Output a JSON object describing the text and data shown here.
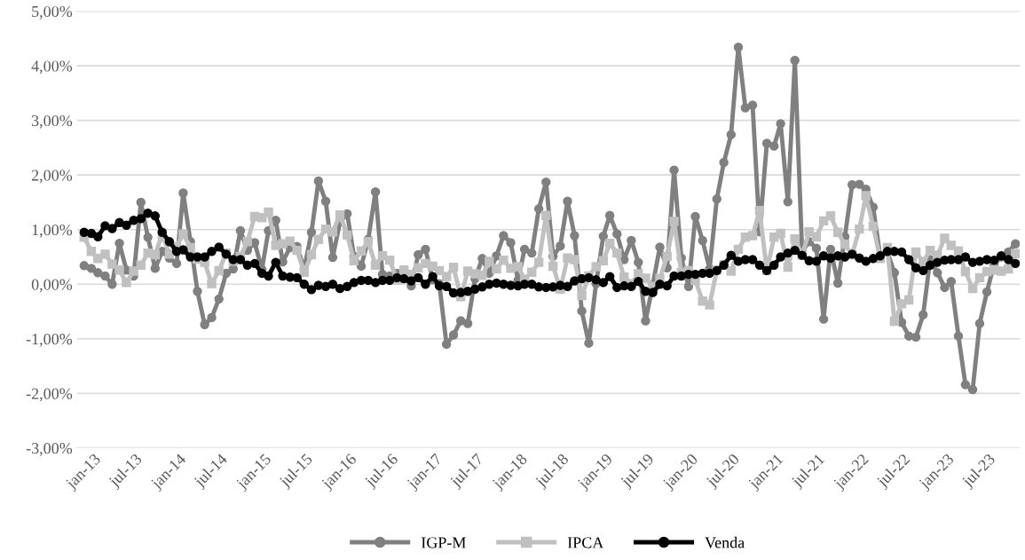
{
  "chart_data": {
    "type": "line",
    "x": [
      "2013-01",
      "2013-02",
      "2013-03",
      "2013-04",
      "2013-05",
      "2013-06",
      "2013-07",
      "2013-08",
      "2013-09",
      "2013-10",
      "2013-11",
      "2013-12",
      "2014-01",
      "2014-02",
      "2014-03",
      "2014-04",
      "2014-05",
      "2014-06",
      "2014-07",
      "2014-08",
      "2014-09",
      "2014-10",
      "2014-11",
      "2014-12",
      "2015-01",
      "2015-02",
      "2015-03",
      "2015-04",
      "2015-05",
      "2015-06",
      "2015-07",
      "2015-08",
      "2015-09",
      "2015-10",
      "2015-11",
      "2015-12",
      "2016-01",
      "2016-02",
      "2016-03",
      "2016-04",
      "2016-05",
      "2016-06",
      "2016-07",
      "2016-08",
      "2016-09",
      "2016-10",
      "2016-11",
      "2016-12",
      "2017-01",
      "2017-02",
      "2017-03",
      "2017-04",
      "2017-05",
      "2017-06",
      "2017-07",
      "2017-08",
      "2017-09",
      "2017-10",
      "2017-11",
      "2017-12",
      "2018-01",
      "2018-02",
      "2018-03",
      "2018-04",
      "2018-05",
      "2018-06",
      "2018-07",
      "2018-08",
      "2018-09",
      "2018-10",
      "2018-11",
      "2018-12",
      "2019-01",
      "2019-02",
      "2019-03",
      "2019-04",
      "2019-05",
      "2019-06",
      "2019-07",
      "2019-08",
      "2019-09",
      "2019-10",
      "2019-11",
      "2019-12",
      "2020-01",
      "2020-02",
      "2020-03",
      "2020-04",
      "2020-05",
      "2020-06",
      "2020-07",
      "2020-08",
      "2020-09",
      "2020-10",
      "2020-11",
      "2020-12",
      "2021-01",
      "2021-02",
      "2021-03",
      "2021-04",
      "2021-05",
      "2021-06",
      "2021-07",
      "2021-08",
      "2021-09",
      "2021-10",
      "2021-11",
      "2021-12",
      "2022-01",
      "2022-02",
      "2022-03",
      "2022-04",
      "2022-05",
      "2022-06",
      "2022-07",
      "2022-08",
      "2022-09",
      "2022-10",
      "2022-11",
      "2022-12",
      "2023-01",
      "2023-02",
      "2023-03",
      "2023-04",
      "2023-05",
      "2023-06",
      "2023-07",
      "2023-08",
      "2023-09",
      "2023-10",
      "2023-11",
      "2023-12"
    ],
    "xlim": [
      "2012-12-01",
      "2023-12-20"
    ],
    "xticks": [
      {
        "value": "2013-01",
        "label": "jan-13"
      },
      {
        "value": "2013-07",
        "label": "jul-13"
      },
      {
        "value": "2014-01",
        "label": "jan-14"
      },
      {
        "value": "2014-07",
        "label": "jul-14"
      },
      {
        "value": "2015-01",
        "label": "jan-15"
      },
      {
        "value": "2015-07",
        "label": "jul-15"
      },
      {
        "value": "2016-01",
        "label": "jan-16"
      },
      {
        "value": "2016-07",
        "label": "jul-16"
      },
      {
        "value": "2017-01",
        "label": "jan-17"
      },
      {
        "value": "2017-07",
        "label": "jul-17"
      },
      {
        "value": "2018-01",
        "label": "jan-18"
      },
      {
        "value": "2018-07",
        "label": "jul-18"
      },
      {
        "value": "2019-01",
        "label": "jan-19"
      },
      {
        "value": "2019-07",
        "label": "jul-19"
      },
      {
        "value": "2020-01",
        "label": "jan-20"
      },
      {
        "value": "2020-07",
        "label": "jul-20"
      },
      {
        "value": "2021-01",
        "label": "jan-21"
      },
      {
        "value": "2021-07",
        "label": "jul-21"
      },
      {
        "value": "2022-01",
        "label": "jan-22"
      },
      {
        "value": "2022-07",
        "label": "jul-22"
      },
      {
        "value": "2023-01",
        "label": "jan-23"
      },
      {
        "value": "2023-07",
        "label": "jul-23"
      }
    ],
    "ylim": [
      -3,
      5
    ],
    "yticks": [
      {
        "value": -3,
        "label": "-3,00%"
      },
      {
        "value": -2,
        "label": "-2,00%"
      },
      {
        "value": -1,
        "label": "-1,00%"
      },
      {
        "value": 0,
        "label": "0,00%"
      },
      {
        "value": 1,
        "label": "1,00%"
      },
      {
        "value": 2,
        "label": "2,00%"
      },
      {
        "value": 3,
        "label": "3,00%"
      },
      {
        "value": 4,
        "label": "4,00%"
      },
      {
        "value": 5,
        "label": "5,00%"
      }
    ],
    "grid": "y",
    "legend": "bottom",
    "line_style": "solid",
    "series": [
      {
        "name": "IGP-M",
        "color": "#808080",
        "marker": "circle",
        "values": [
          0.34,
          0.29,
          0.21,
          0.15,
          0.0,
          0.75,
          0.26,
          0.15,
          1.5,
          0.86,
          0.29,
          0.6,
          0.48,
          0.38,
          1.67,
          0.78,
          -0.13,
          -0.74,
          -0.61,
          -0.27,
          0.2,
          0.28,
          0.98,
          0.62,
          0.76,
          0.27,
          0.98,
          1.17,
          0.41,
          0.67,
          0.69,
          0.28,
          0.95,
          1.89,
          1.52,
          0.49,
          1.14,
          1.29,
          0.51,
          0.33,
          0.82,
          1.69,
          0.18,
          0.15,
          0.2,
          0.16,
          -0.03,
          0.54,
          0.64,
          0.08,
          0.01,
          -1.1,
          -0.93,
          -0.67,
          -0.72,
          0.1,
          0.47,
          0.2,
          0.52,
          0.89,
          0.76,
          0.07,
          0.64,
          0.57,
          1.38,
          1.87,
          0.51,
          0.7,
          1.52,
          0.89,
          -0.49,
          -1.08,
          0.01,
          0.88,
          1.26,
          0.92,
          0.45,
          0.8,
          0.4,
          -0.67,
          -0.01,
          0.68,
          0.3,
          2.09,
          0.48,
          -0.04,
          1.24,
          0.8,
          0.28,
          1.56,
          2.23,
          2.74,
          4.34,
          3.23,
          3.28,
          0.96,
          2.58,
          2.53,
          2.94,
          1.51,
          4.1,
          0.6,
          0.78,
          0.66,
          -0.64,
          0.64,
          0.02,
          0.87,
          1.82,
          1.83,
          1.74,
          1.41,
          0.52,
          0.59,
          0.21,
          -0.7,
          -0.95,
          -0.97,
          -0.56,
          0.45,
          0.21,
          -0.06,
          0.05,
          -0.95,
          -1.84,
          -1.93,
          -0.72,
          -0.14,
          0.37,
          0.5,
          0.59,
          0.74
        ]
      },
      {
        "name": "IPCA",
        "color": "#c0c0c0",
        "marker": "square",
        "values": [
          0.86,
          0.6,
          0.47,
          0.55,
          0.37,
          0.26,
          0.03,
          0.24,
          0.35,
          0.57,
          0.54,
          0.92,
          0.55,
          0.69,
          0.92,
          0.67,
          0.46,
          0.4,
          0.01,
          0.25,
          0.57,
          0.42,
          0.51,
          0.78,
          1.24,
          1.22,
          1.32,
          0.71,
          0.74,
          0.79,
          0.62,
          0.22,
          0.54,
          0.82,
          1.01,
          0.96,
          1.27,
          0.9,
          0.43,
          0.61,
          0.78,
          0.35,
          0.52,
          0.44,
          0.08,
          0.26,
          0.18,
          0.3,
          0.38,
          0.33,
          0.25,
          0.14,
          0.31,
          -0.23,
          0.24,
          0.19,
          0.16,
          0.42,
          0.28,
          0.44,
          0.29,
          0.32,
          0.09,
          0.22,
          0.4,
          1.26,
          0.33,
          -0.09,
          0.48,
          0.45,
          -0.21,
          0.15,
          0.32,
          0.43,
          0.75,
          0.57,
          0.13,
          0.01,
          0.19,
          0.11,
          -0.04,
          0.1,
          0.51,
          1.15,
          0.21,
          0.25,
          0.07,
          -0.31,
          -0.38,
          0.26,
          0.36,
          0.24,
          0.64,
          0.86,
          0.89,
          1.35,
          0.25,
          0.86,
          0.93,
          0.31,
          0.83,
          0.53,
          0.96,
          0.87,
          1.16,
          1.25,
          0.95,
          0.73,
          0.54,
          1.01,
          1.62,
          1.06,
          0.47,
          0.67,
          -0.68,
          -0.36,
          -0.29,
          0.59,
          0.41,
          0.62,
          0.53,
          0.84,
          0.71,
          0.61,
          0.23,
          -0.08,
          0.12,
          0.23,
          0.26,
          0.24,
          0.28,
          0.56
        ]
      },
      {
        "name": "Venda",
        "color": "#000000",
        "marker": "circle",
        "values": [
          0.95,
          0.93,
          0.87,
          1.07,
          1.02,
          1.13,
          1.08,
          1.17,
          1.2,
          1.3,
          1.25,
          0.95,
          0.78,
          0.6,
          0.63,
          0.5,
          0.5,
          0.5,
          0.6,
          0.68,
          0.55,
          0.45,
          0.45,
          0.35,
          0.38,
          0.2,
          0.15,
          0.4,
          0.15,
          0.13,
          0.12,
          0.0,
          -0.1,
          -0.02,
          -0.04,
          0.0,
          -0.08,
          -0.04,
          0.03,
          0.07,
          0.07,
          0.03,
          0.07,
          0.07,
          0.12,
          0.1,
          0.06,
          0.12,
          0.0,
          0.14,
          -0.03,
          -0.04,
          -0.16,
          -0.15,
          -0.13,
          -0.09,
          -0.05,
          0.0,
          0.02,
          0.0,
          -0.02,
          -0.03,
          0.0,
          0.0,
          -0.05,
          -0.06,
          -0.05,
          -0.02,
          -0.04,
          0.06,
          0.1,
          0.12,
          0.08,
          0.03,
          0.14,
          -0.06,
          -0.03,
          -0.04,
          0.05,
          -0.13,
          -0.15,
          0.0,
          -0.03,
          0.15,
          0.15,
          0.18,
          0.18,
          0.2,
          0.2,
          0.25,
          0.35,
          0.53,
          0.42,
          0.45,
          0.45,
          0.35,
          0.25,
          0.35,
          0.5,
          0.57,
          0.62,
          0.53,
          0.43,
          0.42,
          0.52,
          0.48,
          0.52,
          0.5,
          0.55,
          0.48,
          0.42,
          0.47,
          0.52,
          0.6,
          0.6,
          0.59,
          0.45,
          0.3,
          0.25,
          0.35,
          0.4,
          0.44,
          0.45,
          0.45,
          0.5,
          0.4,
          0.42,
          0.45,
          0.44,
          0.52,
          0.45,
          0.38
        ]
      }
    ]
  }
}
